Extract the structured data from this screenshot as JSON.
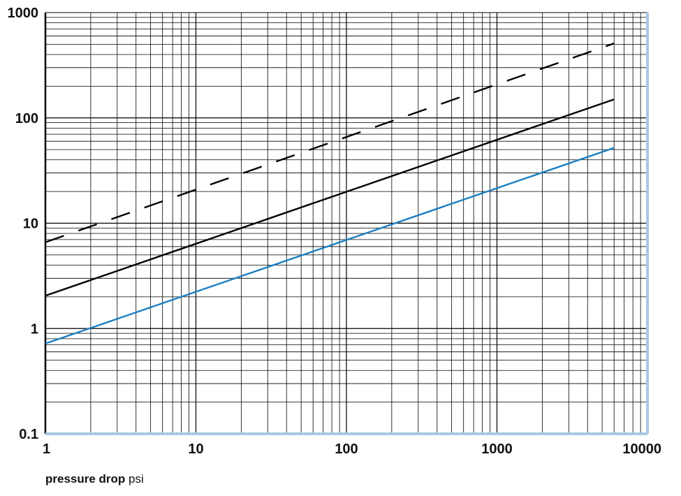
{
  "chart_data": {
    "type": "line",
    "x_scale": "log",
    "y_scale": "log",
    "xlim": [
      1,
      10000
    ],
    "ylim": [
      0.1,
      1000
    ],
    "grid": true,
    "x_ticks": [
      "1",
      "10",
      "100",
      "1000",
      "10000"
    ],
    "y_ticks": [
      "0.1",
      "1",
      "10",
      "100",
      "1000"
    ],
    "xlabel": {
      "bold": "pressure drop",
      "unit": "psi"
    },
    "ylabel": "",
    "title": "",
    "series": [
      {
        "style": "dashed",
        "color": "#000000",
        "x": [
          1,
          6000
        ],
        "y": [
          6.6,
          510
        ]
      },
      {
        "style": "solid",
        "color": "#000000",
        "x": [
          1,
          6000
        ],
        "y": [
          2.05,
          150
        ]
      },
      {
        "style": "solid",
        "color": "#1a7fc1",
        "x": [
          1,
          6000
        ],
        "y": [
          0.72,
          52
        ]
      }
    ]
  },
  "colors": {
    "grid": "#000000",
    "axis_blue": "#a9c8e8",
    "accent_blue": "#1a7fc1"
  }
}
